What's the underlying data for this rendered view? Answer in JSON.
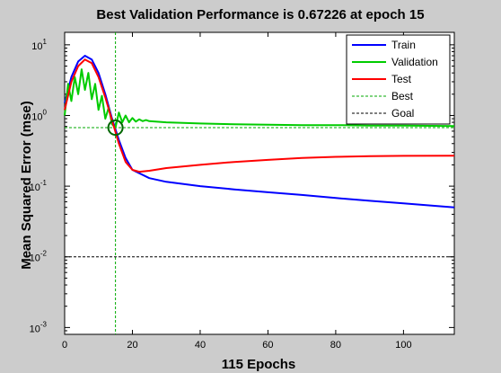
{
  "chart_data": {
    "type": "line",
    "title": "Best Validation Performance is 0.67226 at epoch 15",
    "xlabel": "115 Epochs",
    "ylabel": "Mean Squared Error  (mse)",
    "xlim": [
      0,
      115
    ],
    "ylim": [
      0.0008,
      15
    ],
    "yscale": "log",
    "x_ticks": [
      "0",
      "20",
      "40",
      "60",
      "80",
      "100"
    ],
    "y_ticks": [
      {
        "base": "10",
        "exp": "-3"
      },
      {
        "base": "10",
        "exp": "-2"
      },
      {
        "base": "10",
        "exp": "-1"
      },
      {
        "base": "10",
        "exp": "0"
      },
      {
        "base": "10",
        "exp": "1"
      }
    ],
    "legend_position": "top-right",
    "series": [
      {
        "name": "Train",
        "color": "#0000ff",
        "style": "solid",
        "x": [
          0,
          2,
          4,
          6,
          8,
          10,
          12,
          14,
          16,
          18,
          20,
          25,
          30,
          40,
          50,
          60,
          70,
          80,
          90,
          100,
          115
        ],
        "y": [
          1.5,
          3.5,
          5.8,
          7.0,
          6.2,
          4.0,
          2.0,
          0.9,
          0.45,
          0.25,
          0.17,
          0.13,
          0.115,
          0.1,
          0.09,
          0.082,
          0.075,
          0.068,
          0.062,
          0.057,
          0.05
        ]
      },
      {
        "name": "Validation",
        "color": "#00cc00",
        "style": "solid",
        "x": [
          0,
          1,
          2,
          3,
          4,
          5,
          6,
          7,
          8,
          9,
          10,
          11,
          12,
          13,
          14,
          15,
          16,
          17,
          18,
          19,
          20,
          21,
          22,
          23,
          24,
          25,
          30,
          40,
          50,
          60,
          70,
          80,
          90,
          100,
          115
        ],
        "y": [
          1.0,
          2.8,
          1.6,
          3.5,
          2.0,
          4.5,
          2.3,
          4.0,
          1.7,
          2.8,
          1.2,
          1.9,
          0.9,
          1.3,
          0.75,
          0.67226,
          1.1,
          0.8,
          1.0,
          0.8,
          0.92,
          0.82,
          0.88,
          0.83,
          0.86,
          0.83,
          0.8,
          0.77,
          0.75,
          0.74,
          0.73,
          0.73,
          0.72,
          0.72,
          0.71
        ]
      },
      {
        "name": "Test",
        "color": "#ff0000",
        "style": "solid",
        "x": [
          0,
          2,
          4,
          6,
          8,
          10,
          12,
          14,
          16,
          18,
          20,
          22,
          25,
          30,
          40,
          50,
          60,
          70,
          80,
          90,
          100,
          115
        ],
        "y": [
          1.2,
          3.0,
          5.0,
          6.2,
          5.5,
          3.5,
          1.8,
          0.85,
          0.4,
          0.22,
          0.17,
          0.16,
          0.165,
          0.18,
          0.2,
          0.22,
          0.235,
          0.25,
          0.26,
          0.265,
          0.268,
          0.27
        ]
      },
      {
        "name": "Best",
        "color": "#00aa00",
        "style": "dotted",
        "best_epoch": 15,
        "best_value": 0.67226
      },
      {
        "name": "Goal",
        "color": "#000000",
        "style": "dotted",
        "goal_value": 0.01
      }
    ]
  }
}
